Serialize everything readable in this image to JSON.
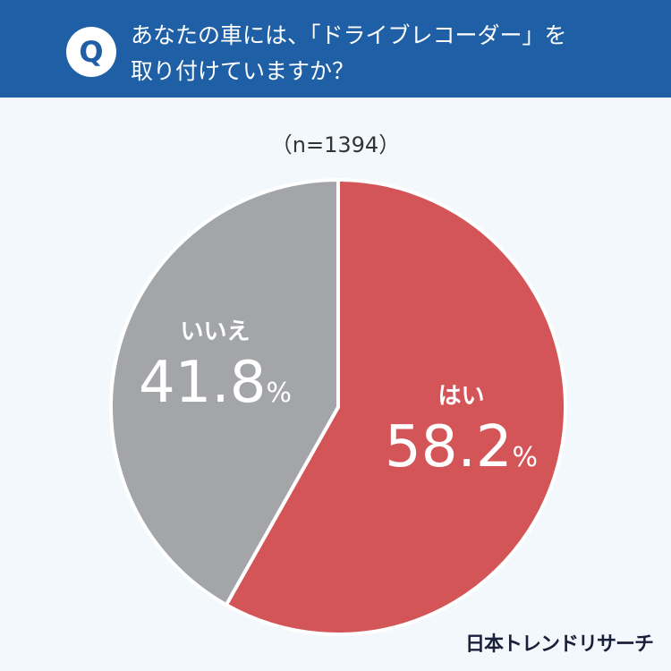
{
  "header": {
    "badge": "Q",
    "question_line1": "あなたの車には、「ドライブレコーダー」を",
    "question_line2": "取り付けていますか？"
  },
  "colors": {
    "header_bg": "#1e5fa6",
    "yes": "#d45558",
    "no": "#a3a5a9"
  },
  "chart_data": {
    "type": "pie",
    "subtitle": "（n=1394）",
    "slices": [
      {
        "label": "はい",
        "value": 58.2,
        "display": "58.2",
        "unit": "%",
        "color": "#d45558"
      },
      {
        "label": "いいえ",
        "value": 41.8,
        "display": "41.8",
        "unit": "%",
        "color": "#a3a5a9"
      }
    ]
  },
  "footer": {
    "brand": "日本トレンドリサーチ"
  }
}
